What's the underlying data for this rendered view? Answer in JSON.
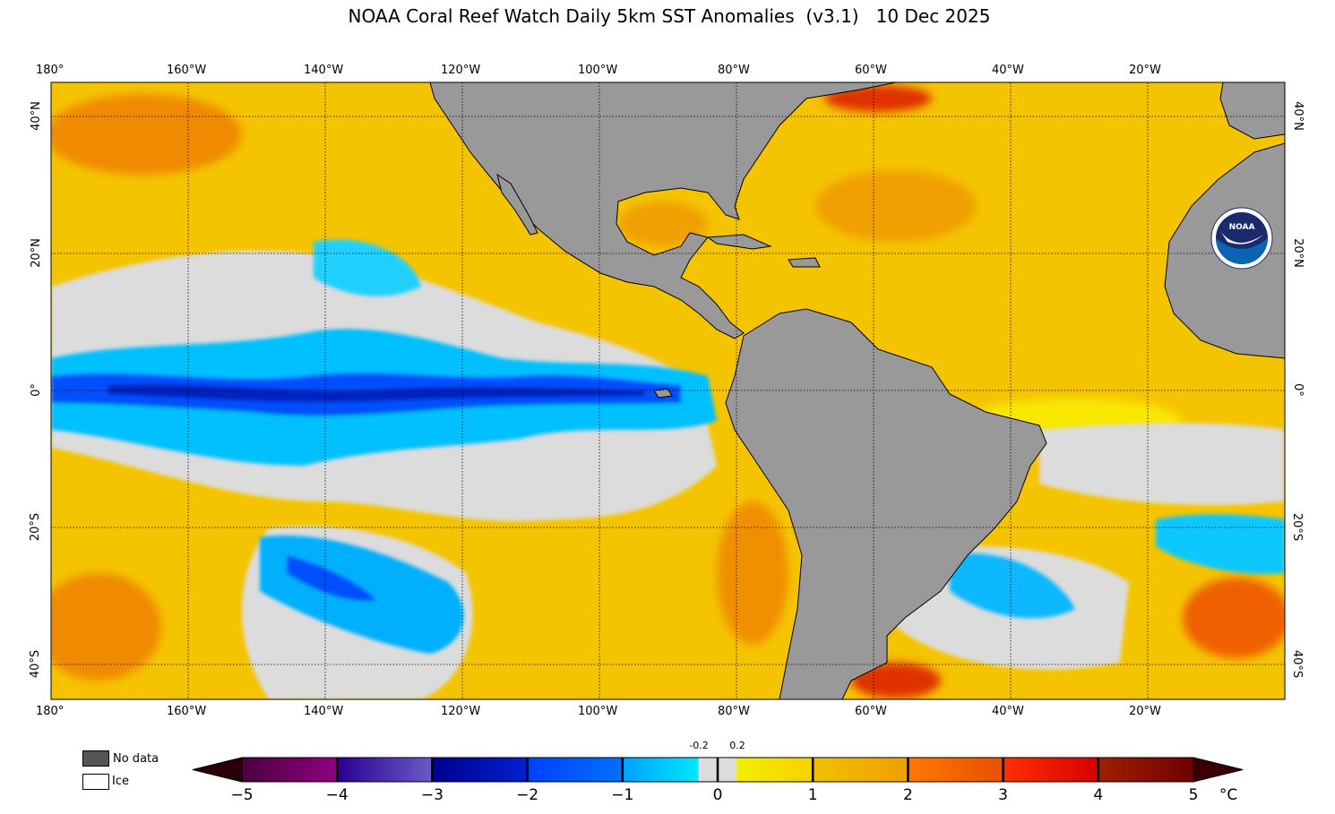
{
  "title": "NOAA Coral Reef Watch Daily 5km SST Anomalies  (v3.1)   10 Dec 2025",
  "map": {
    "lon_labels": [
      "180°",
      "160°W",
      "140°W",
      "120°W",
      "100°W",
      "80°W",
      "60°W",
      "40°W",
      "20°W"
    ],
    "lat_labels": [
      "40°N",
      "20°N",
      "0°",
      "20°S",
      "40°S"
    ],
    "extent": {
      "lon": [
        -180,
        0
      ],
      "lat": [
        -45,
        45
      ]
    },
    "gridlines": true,
    "land_color": "#999999",
    "logo": "NOAA"
  },
  "legend": {
    "no_data_label": "No data",
    "no_data_color": "#555555",
    "ice_label": "Ice",
    "ice_color": "#ffffff"
  },
  "colorbar": {
    "range": [
      -5,
      5
    ],
    "unit": "°C",
    "tick_labels": [
      "−5",
      "−4",
      "−3",
      "−2",
      "−1",
      "0",
      "1",
      "2",
      "3",
      "4",
      "5"
    ],
    "small_labels": [
      "-0.2",
      "0.2"
    ],
    "under_color": "#2a0008",
    "over_color": "#3a0000",
    "segments": [
      {
        "from": -5,
        "to": -4,
        "colors": [
          "#4a0040",
          "#900080"
        ]
      },
      {
        "from": -4,
        "to": -3,
        "colors": [
          "#2a0090",
          "#6a5ac8"
        ]
      },
      {
        "from": -3,
        "to": -2,
        "colors": [
          "#000090",
          "#0020d0"
        ]
      },
      {
        "from": -2,
        "to": -1,
        "colors": [
          "#0040ff",
          "#0070ff"
        ]
      },
      {
        "from": -1,
        "to": -0.2,
        "colors": [
          "#00a0ff",
          "#00e8ff"
        ]
      },
      {
        "from": -0.2,
        "to": 0.2,
        "colors": [
          "#dcdcdc",
          "#dcdcdc"
        ]
      },
      {
        "from": 0.2,
        "to": 1,
        "colors": [
          "#f0f000",
          "#f8d000"
        ]
      },
      {
        "from": 1,
        "to": 2,
        "colors": [
          "#f0c000",
          "#f0a000"
        ]
      },
      {
        "from": 2,
        "to": 3,
        "colors": [
          "#ff7800",
          "#e85000"
        ]
      },
      {
        "from": 3,
        "to": 4,
        "colors": [
          "#ff3000",
          "#d80000"
        ]
      },
      {
        "from": 4,
        "to": 5,
        "colors": [
          "#a02000",
          "#700000"
        ]
      }
    ]
  }
}
